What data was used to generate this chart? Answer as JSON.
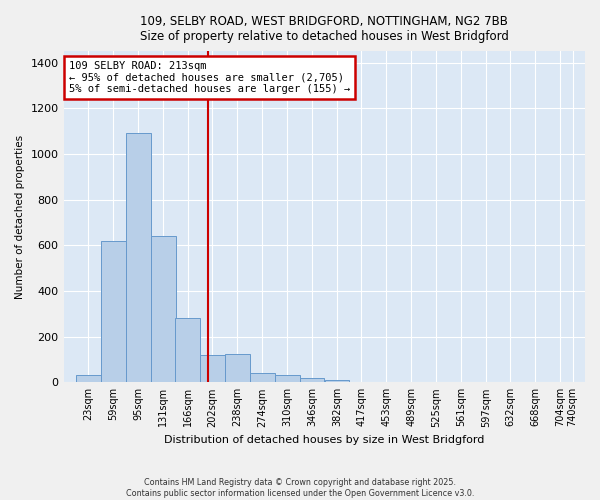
{
  "title_line1": "109, SELBY ROAD, WEST BRIDGFORD, NOTTINGHAM, NG2 7BB",
  "title_line2": "Size of property relative to detached houses in West Bridgford",
  "xlabel": "Distribution of detached houses by size in West Bridgford",
  "ylabel": "Number of detached properties",
  "bin_labels": [
    "23sqm",
    "59sqm",
    "95sqm",
    "131sqm",
    "166sqm",
    "202sqm",
    "238sqm",
    "274sqm",
    "310sqm",
    "346sqm",
    "382sqm",
    "417sqm",
    "453sqm",
    "489sqm",
    "525sqm",
    "561sqm",
    "597sqm",
    "632sqm",
    "668sqm",
    "704sqm",
    "740sqm"
  ],
  "bin_left_edges": [
    23,
    59,
    95,
    131,
    166,
    202,
    238,
    274,
    310,
    346,
    382,
    417,
    453,
    489,
    525,
    561,
    597,
    632,
    668,
    704
  ],
  "bar_heights": [
    30,
    620,
    1090,
    640,
    280,
    120,
    125,
    40,
    30,
    20,
    10,
    0,
    0,
    0,
    0,
    0,
    0,
    0,
    0,
    0
  ],
  "bar_color": "#b8cfe8",
  "bar_edge_color": "#6699cc",
  "vline_x": 213,
  "vline_color": "#cc0000",
  "annotation_text": "109 SELBY ROAD: 213sqm\n← 95% of detached houses are smaller (2,705)\n5% of semi-detached houses are larger (155) →",
  "annotation_box_color": "#cc0000",
  "ylim": [
    0,
    1450
  ],
  "yticks": [
    0,
    200,
    400,
    600,
    800,
    1000,
    1200,
    1400
  ],
  "xlim_left": 5,
  "xlim_right": 758,
  "bg_color": "#dce8f5",
  "grid_color": "#ffffff",
  "fig_bg_color": "#f0f0f0",
  "footer_line1": "Contains HM Land Registry data © Crown copyright and database right 2025.",
  "footer_line2": "Contains public sector information licensed under the Open Government Licence v3.0."
}
